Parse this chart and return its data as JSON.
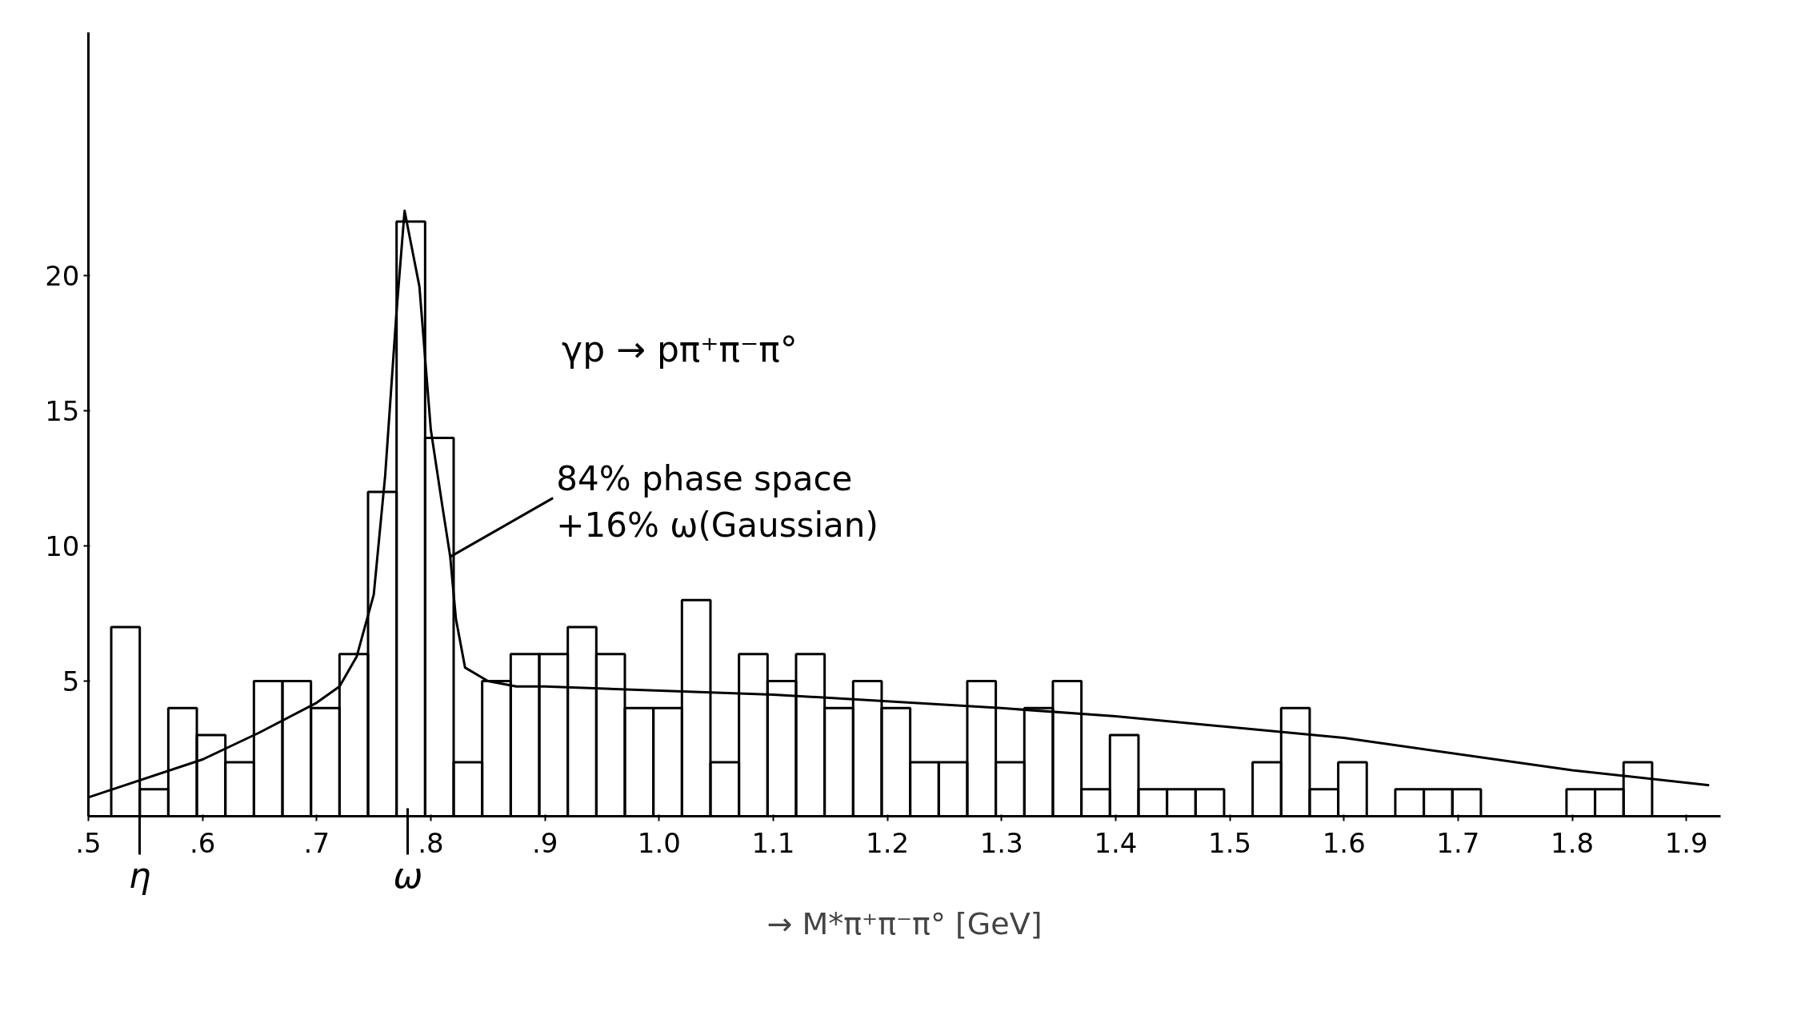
{
  "chart_data": {
    "type": "histogram",
    "xlabel": "→ M*π⁺π⁻π° [GeV]",
    "bins": [
      0.52,
      0.545,
      0.57,
      0.595,
      0.62,
      0.645,
      0.67,
      0.695,
      0.72,
      0.745,
      0.77,
      0.795,
      0.82,
      0.845,
      0.87,
      0.895,
      0.92,
      0.945,
      0.97,
      0.995,
      1.02,
      1.045,
      1.07,
      1.095,
      1.12,
      1.145,
      1.17,
      1.195,
      1.22,
      1.245,
      1.27,
      1.295,
      1.32,
      1.345,
      1.37,
      1.395,
      1.42,
      1.445,
      1.47,
      1.495,
      1.52,
      1.545,
      1.57,
      1.595,
      1.62,
      1.645,
      1.67,
      1.695,
      1.72,
      1.745,
      1.77,
      1.795,
      1.82,
      1.845,
      1.87
    ],
    "values": [
      7,
      1,
      4,
      3,
      2,
      5,
      5,
      4,
      6,
      12,
      22,
      14,
      2,
      5,
      6,
      6,
      7,
      6,
      4,
      4,
      8,
      2,
      6,
      5,
      6,
      4,
      5,
      4,
      2,
      2,
      5,
      2,
      4,
      5,
      1,
      3,
      1,
      1,
      1,
      0,
      2,
      4,
      1,
      2,
      0,
      1,
      1,
      1,
      0,
      0,
      0,
      1,
      1,
      2
    ],
    "color": "#000000",
    "series": [
      {
        "type": "line",
        "color": "#000000",
        "x": [
          0.5,
          0.6,
          0.65,
          0.7,
          0.72,
          0.735,
          0.75,
          0.76,
          0.77,
          0.777,
          0.79,
          0.8,
          0.81,
          0.817,
          0.822,
          0.83,
          0.85,
          0.875,
          0.9,
          1.1,
          1.3,
          1.4,
          1.6,
          1.8,
          1.92
        ],
        "values": [
          0.7,
          2.1,
          3.1,
          4.2,
          4.8,
          5.9,
          8.2,
          12.6,
          18.7,
          22.4,
          19.6,
          14.3,
          11.5,
          9.6,
          7.3,
          5.5,
          5.0,
          4.8,
          4.8,
          4.5,
          4.0,
          3.7,
          2.9,
          1.7,
          1.15
        ]
      }
    ],
    "xlim": [
      0.5,
      1.93
    ],
    "ylim": [
      0,
      29
    ],
    "xticks": [
      {
        "value": 0.5,
        "label": ".5"
      },
      {
        "value": 0.6,
        "label": ".6"
      },
      {
        "value": 0.7,
        "label": ".7"
      },
      {
        "value": 0.8,
        "label": ".8"
      },
      {
        "value": 0.9,
        "label": ".9"
      },
      {
        "value": 1.0,
        "label": "1.0"
      },
      1.1,
      1.2,
      1.3,
      1.4,
      1.5,
      1.6,
      1.7,
      1.8,
      1.9
    ],
    "yticks": [
      5,
      10,
      15,
      20
    ],
    "annotations": [
      "γp → pπ⁺π⁻π°",
      {
        "text": "84% phase space\n+16% ω(Gaussian)",
        "x": 0.817,
        "y": 9.6
      },
      {
        "text": "η",
        "x": 0.545,
        "y": 0
      },
      {
        "text": "ω",
        "x": 0.78,
        "y": 0
      }
    ]
  }
}
